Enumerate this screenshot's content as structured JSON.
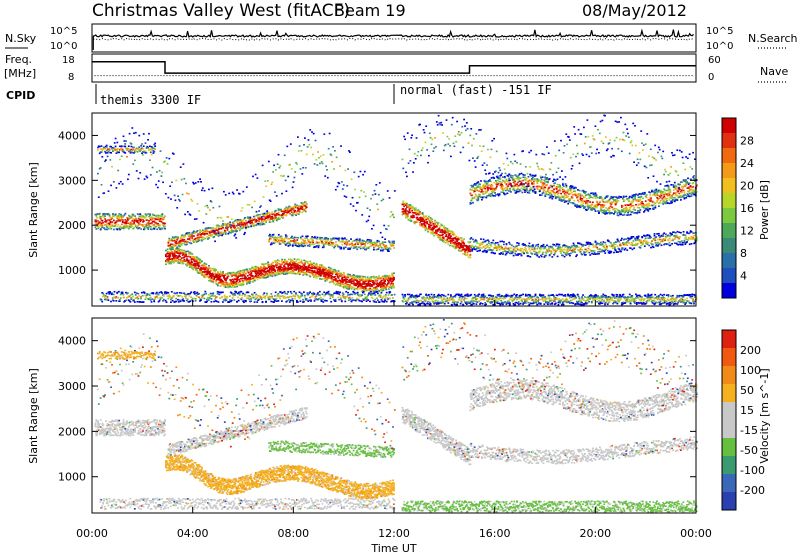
{
  "header": {
    "station": "Christmas Valley West (fitACF)",
    "beam": "Beam 19",
    "date": "08/May/2012"
  },
  "side_labels": {
    "nsky": "N.Sky",
    "freq_line1": "Freq.",
    "freq_line2": "[MHz]",
    "cpid": "CPID",
    "nsearch": "N.Search",
    "nave": "Nave"
  },
  "cpid_segments": [
    {
      "label": "themis 3300 IF",
      "start_hour": 0,
      "end_hour": 12
    },
    {
      "label": "normal (fast) -151 IF",
      "start_hour": 12,
      "end_hour": 24
    }
  ],
  "chart_data": [
    {
      "type": "line",
      "name": "noise",
      "x_range_hours": [
        0,
        24
      ],
      "ylabel_left": "N.Sky",
      "ylabel_right": "N.Search",
      "yticks_left": [
        "10^5",
        "10^0"
      ],
      "yticks_right": [
        "10^5",
        "10^0"
      ]
    },
    {
      "type": "line",
      "name": "frequency",
      "x_range_hours": [
        0,
        24
      ],
      "ylabel_left": "Freq. [MHz]",
      "ylabel_right": "Nave",
      "yticks_left": [
        "18",
        "8"
      ],
      "yticks_right": [
        "60",
        "0"
      ],
      "freq_steps": [
        {
          "start": 0,
          "end": 2.9,
          "mhz": 15.8
        },
        {
          "start": 2.9,
          "end": 12,
          "mhz": 10.7
        },
        {
          "start": 12.3,
          "end": 15,
          "mhz": 10.7
        },
        {
          "start": 15,
          "end": 24,
          "mhz": 14.0
        }
      ],
      "nave_level": 11
    },
    {
      "type": "heatmap",
      "name": "power",
      "ylabel": "Slant Range [km]",
      "x_range_hours": [
        0,
        24
      ],
      "ylim": [
        200,
        4500
      ],
      "yticks": [
        1000,
        2000,
        3000,
        4000
      ],
      "colorbar_label": "Power [dB]",
      "colorbar_ticks": [
        "28",
        "24",
        "20",
        "16",
        "12",
        "8",
        "4"
      ],
      "colorbar_colors": [
        "#0000dd",
        "#1f4fbf",
        "#2b6fa8",
        "#3b8a77",
        "#4ea85a",
        "#7cc83f",
        "#b7d62a",
        "#f0c020",
        "#f59a18",
        "#f06a10",
        "#e03010",
        "#d00000"
      ]
    },
    {
      "type": "heatmap",
      "name": "velocity",
      "ylabel": "Slant Range [km]",
      "x_range_hours": [
        0,
        24
      ],
      "ylim": [
        200,
        4500
      ],
      "yticks": [
        1000,
        2000,
        3000,
        4000
      ],
      "colorbar_label": "Velocity [m s^-1]",
      "colorbar_ticks": [
        "200",
        "100",
        "50",
        "15",
        "-15",
        "-50",
        "-100",
        "-200"
      ],
      "colorbar_colors": [
        "#2a3fb0",
        "#3a68b8",
        "#3a9a70",
        "#66c040",
        "#c8c8c8",
        "#c8c8c8",
        "#f5b020",
        "#f08a18",
        "#f05a10",
        "#e02010"
      ]
    }
  ],
  "x_axis": {
    "ticks": [
      "00:00",
      "04:00",
      "08:00",
      "12:00",
      "16:00",
      "20:00",
      "00:00"
    ],
    "label": "Time UT"
  }
}
